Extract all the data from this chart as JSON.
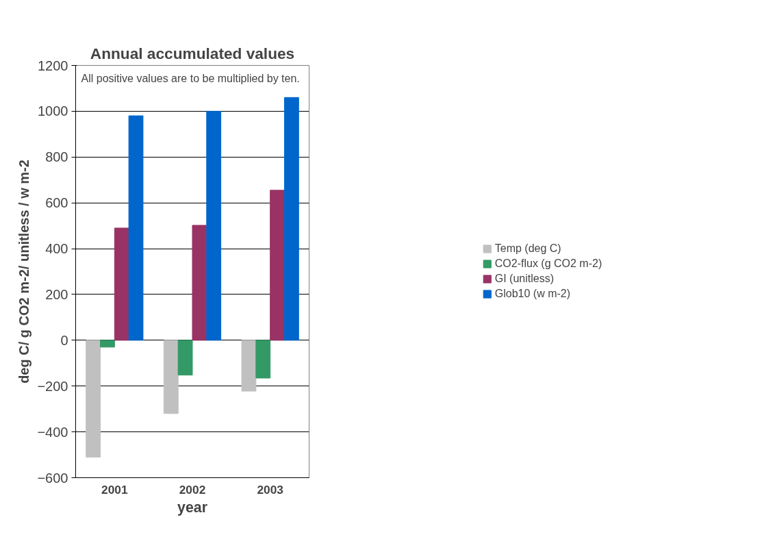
{
  "chart_data": {
    "type": "bar",
    "title": "Annual accumulated values",
    "xlabel": "year",
    "ylabel": "deg C/ g CO2 m-2/ unitless / w m-2",
    "categories": [
      "2001",
      "2002",
      "2003"
    ],
    "series": [
      {
        "name": "Temp (deg C)",
        "color": "#c0c0c0",
        "values": [
          -510,
          -320,
          -222
        ]
      },
      {
        "name": "CO2-flux (g CO2 m-2)",
        "color": "#339966",
        "values": [
          -30,
          -152,
          -165
        ]
      },
      {
        "name": "GI (unitless)",
        "color": "#993366",
        "values": [
          490,
          502,
          655
        ]
      },
      {
        "name": "Glob10 (w m-2)",
        "color": "#0066cc",
        "values": [
          980,
          1000,
          1060
        ]
      }
    ],
    "ylim": [
      -600,
      1200
    ],
    "yticks": [
      -600,
      -400,
      -200,
      0,
      200,
      400,
      600,
      800,
      1000,
      1200
    ],
    "grid": "y",
    "legend": "right",
    "annotations": [
      "All positive values are to be multiplied by ten."
    ]
  }
}
